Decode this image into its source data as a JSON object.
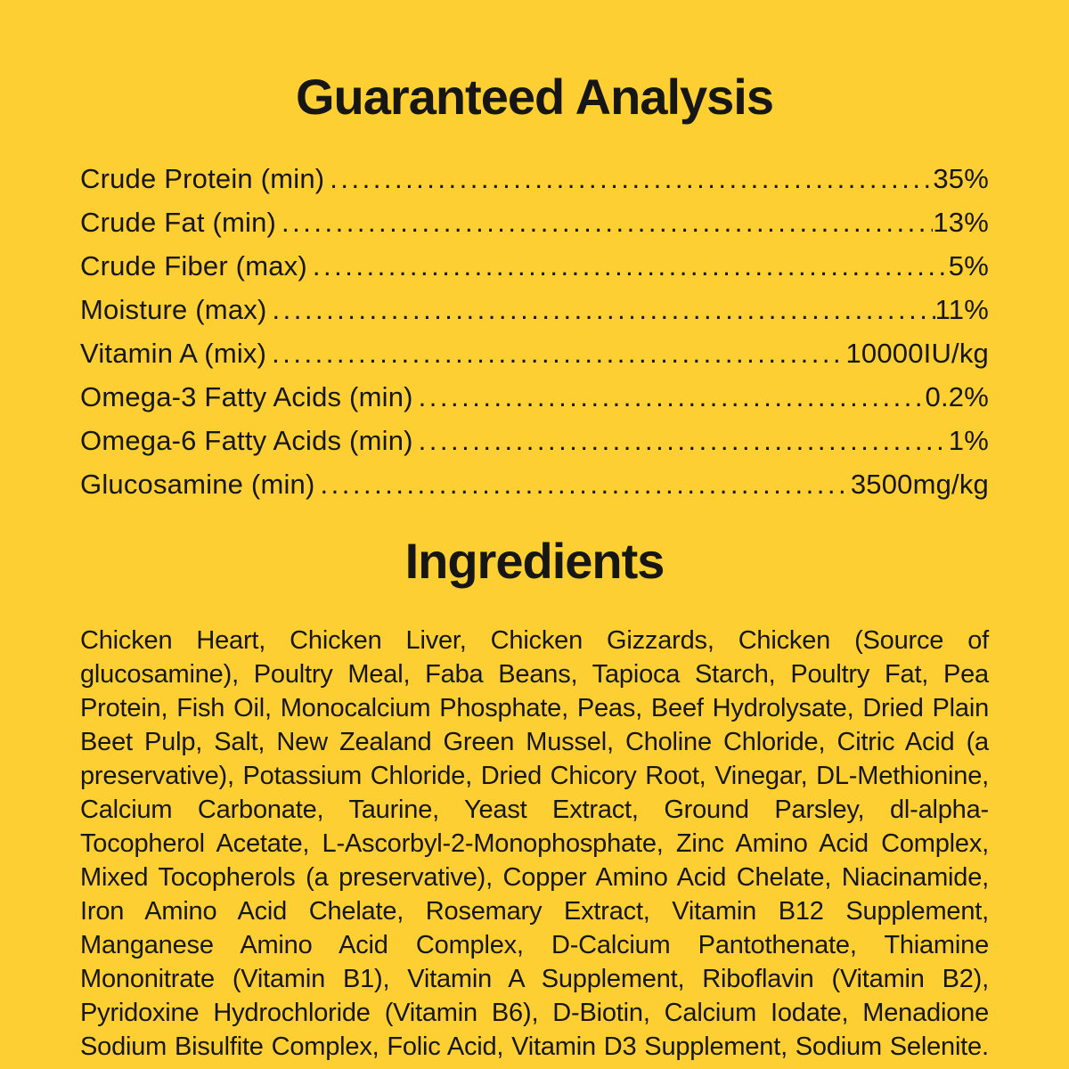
{
  "colors": {
    "background": "#fecf33",
    "text": "#161614"
  },
  "guaranteed_analysis": {
    "title": "Guaranteed Analysis",
    "rows": [
      {
        "label": "Crude Protein (min)",
        "value": "35%"
      },
      {
        "label": "Crude Fat (min)",
        "value": "13%"
      },
      {
        "label": "Crude Fiber (max)",
        "value": "5%"
      },
      {
        "label": "Moisture (max)",
        "value": "11%"
      },
      {
        "label": "Vitamin A (mix)",
        "value": "10000IU/kg"
      },
      {
        "label": "Omega-3 Fatty Acids (min)",
        "value": "0.2%"
      },
      {
        "label": "Omega-6 Fatty Acids (min)",
        "value": "1%"
      },
      {
        "label": "Glucosamine (min)",
        "value": "3500mg/kg"
      }
    ]
  },
  "ingredients": {
    "title": "Ingredients",
    "text": "Chicken Heart, Chicken Liver, Chicken Gizzards, Chicken (Source of glucosamine), Poultry Meal, Faba Beans, Tapioca Starch, Poultry Fat, Pea Protein, Fish Oil, Monocalcium Phosphate, Peas, Beef Hydrolysate, Dried Plain Beet Pulp, Salt, New Zealand Green Mussel, Choline Chloride, Citric Acid (a preservative), Potassium Chloride, Dried Chicory Root, Vinegar, DL-Methionine, Calcium Carbonate, Taurine, Yeast Extract, Ground Parsley, dl-alpha-Tocopherol Acetate, L-Ascorbyl-2-Monophosphate, Zinc Amino Acid Complex, Mixed Tocopherols (a preservative), Copper Amino Acid Chelate, Niacinamide, Iron Amino Acid Chelate, Rosemary Extract, Vitamin B12 Supplement, Manganese Amino Acid Complex, D-Calcium Pantothenate, Thiamine Mononitrate (Vitamin B1), Vitamin A Supplement, Riboflavin (Vitamin B2), Pyridoxine Hydrochloride (Vitamin B6), D-Biotin, Calcium Iodate, Menadione Sodium Bisulfite Complex, Folic Acid, Vitamin D3 Supplement, Sodium Selenite."
  }
}
